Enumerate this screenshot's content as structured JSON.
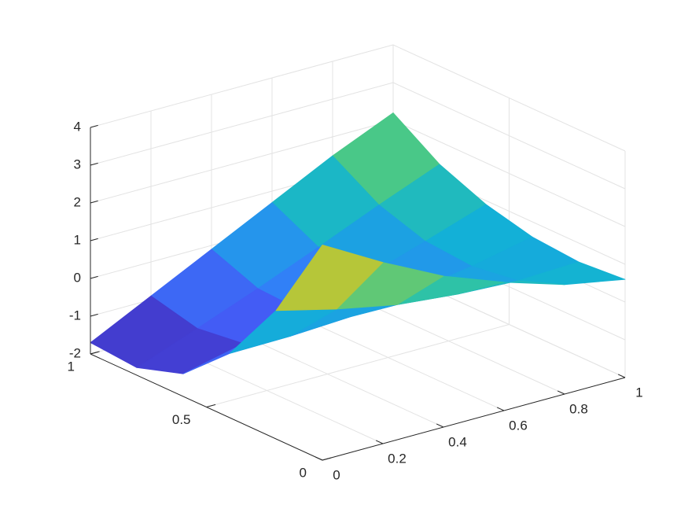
{
  "chart_data": {
    "type": "surface",
    "x": [
      0,
      0.2,
      0.4,
      0.6,
      0.8,
      1
    ],
    "y": [
      0,
      0.2,
      0.4,
      0.6,
      0.8,
      1
    ],
    "z": [
      [
        3.7,
        2.8,
        2.0,
        1.4,
        0.9,
        0.6
      ],
      [
        1.4,
        1.0,
        0.68,
        0.52,
        0.44,
        0.5
      ],
      [
        -0.3,
        -0.28,
        -0.2,
        0.0,
        0.26,
        0.6
      ],
      [
        -1.4,
        -1.04,
        -0.64,
        -0.16,
        0.36,
        0.9
      ],
      [
        -1.8,
        -1.2,
        -0.58,
        0.08,
        0.76,
        1.4
      ],
      [
        -1.7,
        -0.9,
        -0.1,
        0.7,
        1.5,
        2.2
      ]
    ],
    "xlim": [
      0,
      1
    ],
    "ylim": [
      0,
      1
    ],
    "zlim": [
      -2,
      4
    ],
    "xticks": [
      0,
      0.2,
      0.4,
      0.6,
      0.8,
      1
    ],
    "yticks": [
      0,
      0.5,
      1
    ],
    "zticks": [
      -2,
      -1,
      0,
      1,
      2,
      3,
      4
    ],
    "grid": true,
    "colormap": "parula"
  }
}
